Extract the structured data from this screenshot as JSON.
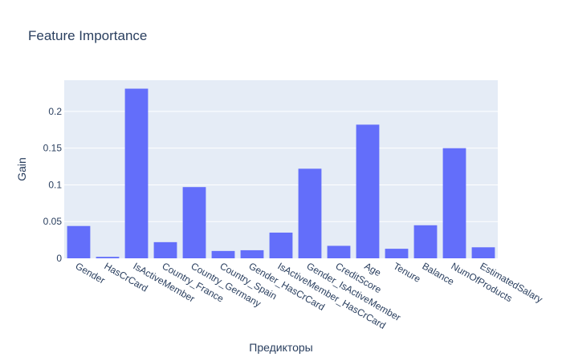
{
  "chart_data": {
    "type": "bar",
    "title": "Feature Importance",
    "xlabel": "Предикторы",
    "ylabel": "Gain",
    "categories": [
      "Gender",
      "HasCrCard",
      "IsActiveMember",
      "Country_France",
      "Country_Germany",
      "Country_Spain",
      "Gender_HasCrCard",
      "IsActiveMember_HasCrCard",
      "Gender_IsActiveMember",
      "CreditScore",
      "Age",
      "Tenure",
      "Balance",
      "NumOfProducts",
      "EstimatedSalary"
    ],
    "values": [
      0.044,
      0.002,
      0.231,
      0.022,
      0.097,
      0.01,
      0.011,
      0.035,
      0.122,
      0.017,
      0.182,
      0.013,
      0.045,
      0.15,
      0.015
    ],
    "ylim": [
      0,
      0.2425
    ],
    "yticks": [
      0,
      0.05,
      0.1,
      0.15,
      0.2
    ],
    "ytick_labels": [
      "0",
      "0.05",
      "0.1",
      "0.15",
      "0.2"
    ],
    "grid": true,
    "bar_color": "#636efa",
    "plot_background": "#e5ecf6"
  }
}
